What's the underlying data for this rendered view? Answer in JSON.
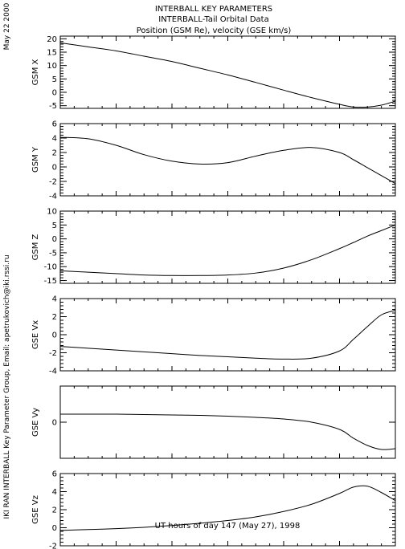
{
  "header": {
    "title_lines": [
      "INTERBALL KEY PARAMETERS",
      "INTERBALL-Tail Orbital Data",
      "Position (GSM Re), velocity (GSE km/s)"
    ],
    "date_stamp": "May 22 2000",
    "credit": "IKI RAN INTERBALL Key Parameter Group, Email: apetrukovich@iki.rssi.ru"
  },
  "chart_data": {
    "type": "line",
    "xlabel": "UT hours of day 147 (May 27), 1998",
    "xlim": [
      0,
      24
    ],
    "xticks": [
      0,
      4,
      8,
      12,
      16,
      20,
      24
    ],
    "x": [
      0,
      2,
      4,
      6,
      8,
      10,
      12,
      14,
      16,
      18,
      20,
      21,
      22,
      23,
      24
    ],
    "panels": [
      {
        "ylabel": "GSM X",
        "ylim": [
          -6,
          21
        ],
        "yticks": [
          -5,
          0,
          5,
          10,
          15,
          20
        ],
        "values": [
          18.5,
          17,
          15.5,
          13.5,
          11.5,
          9,
          6.5,
          3.7,
          0.8,
          -2,
          -4.5,
          -5.5,
          -5.5,
          -4.8,
          -3.3
        ]
      },
      {
        "ylabel": "GSM Y",
        "ylim": [
          -4,
          6
        ],
        "yticks": [
          -4,
          -2,
          0,
          2,
          4,
          6
        ],
        "values": [
          4.1,
          3.9,
          3.0,
          1.7,
          0.8,
          0.4,
          0.6,
          1.5,
          2.3,
          2.7,
          2.0,
          1.0,
          -0.1,
          -1.2,
          -2.3
        ]
      },
      {
        "ylabel": "GSM Z",
        "ylim": [
          -16,
          10
        ],
        "yticks": [
          -15,
          -10,
          -5,
          0,
          5,
          10
        ],
        "values": [
          -11.5,
          -12,
          -12.5,
          -13,
          -13.2,
          -13.2,
          -13,
          -12.3,
          -10.5,
          -7.5,
          -3.5,
          -1.3,
          1,
          3,
          5
        ]
      },
      {
        "ylabel": "GSE Vx",
        "ylim": [
          -4,
          4
        ],
        "yticks": [
          -4,
          -2,
          0,
          2,
          4
        ],
        "values": [
          -1.3,
          -1.5,
          -1.7,
          -1.9,
          -2.1,
          -2.3,
          -2.45,
          -2.6,
          -2.7,
          -2.6,
          -1.8,
          -0.5,
          0.9,
          2.2,
          2.7
        ]
      },
      {
        "ylabel": "GSE Vy",
        "ylim": [
          -0.9,
          0.9
        ],
        "yticks": [
          0
        ],
        "values": [
          0.2,
          0.2,
          0.2,
          0.19,
          0.18,
          0.17,
          0.15,
          0.12,
          0.08,
          0.0,
          -0.18,
          -0.4,
          -0.58,
          -0.68,
          -0.66
        ]
      },
      {
        "ylabel": "GSE Vz",
        "ylim": [
          -2,
          6
        ],
        "yticks": [
          -2,
          0,
          2,
          4,
          6
        ],
        "values": [
          -0.3,
          -0.2,
          -0.1,
          0.05,
          0.25,
          0.5,
          0.8,
          1.2,
          1.8,
          2.6,
          3.8,
          4.5,
          4.6,
          3.9,
          3.0
        ]
      }
    ]
  }
}
